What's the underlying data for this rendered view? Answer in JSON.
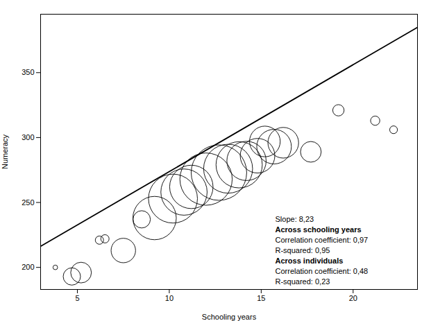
{
  "chart_data": {
    "type": "scatter",
    "xlabel": "Schooling years",
    "ylabel": "Numeracy",
    "xlim": [
      3.0,
      23.5
    ],
    "ylim": [
      183,
      395
    ],
    "xticks": [
      5,
      10,
      15,
      20
    ],
    "yticks": [
      200,
      250,
      300,
      350
    ],
    "color": "#000000",
    "x": [
      3.8,
      4.7,
      5.2,
      6.2,
      6.5,
      7.5,
      8.5,
      9.2,
      10.2,
      10.8,
      11.2,
      12.0,
      12.7,
      13.2,
      13.8,
      14.2,
      14.8,
      15.2,
      15.7,
      16.2,
      17.7,
      19.2,
      21.2,
      22.2
    ],
    "y": [
      200,
      193,
      196,
      221,
      222,
      213,
      237,
      238,
      253,
      258,
      262,
      268,
      273,
      276,
      279,
      282,
      286,
      297,
      293,
      296,
      289,
      321,
      313,
      306
    ],
    "sizes": [
      25,
      350,
      500,
      80,
      80,
      700,
      350,
      2200,
      2800,
      2500,
      2200,
      3200,
      3600,
      2800,
      2500,
      1800,
      1400,
      1100,
      1400,
      1100,
      500,
      150,
      100,
      70
    ],
    "regression_line": {
      "x": [
        3.0,
        23.5
      ],
      "y": [
        216.19,
        384.905
      ],
      "color": "#000000"
    },
    "annotation": {
      "lines": [
        "Slope: 8,23"
      ],
      "groups": [
        {
          "heading": "Across schooling years",
          "lines": [
            "Correlation coefficient: 0,97",
            "R-squared: 0,95"
          ]
        },
        {
          "heading": "Across individuals",
          "lines": [
            "Correlation coefficient: 0,48",
            "R-squared: 0,23"
          ]
        }
      ]
    }
  }
}
